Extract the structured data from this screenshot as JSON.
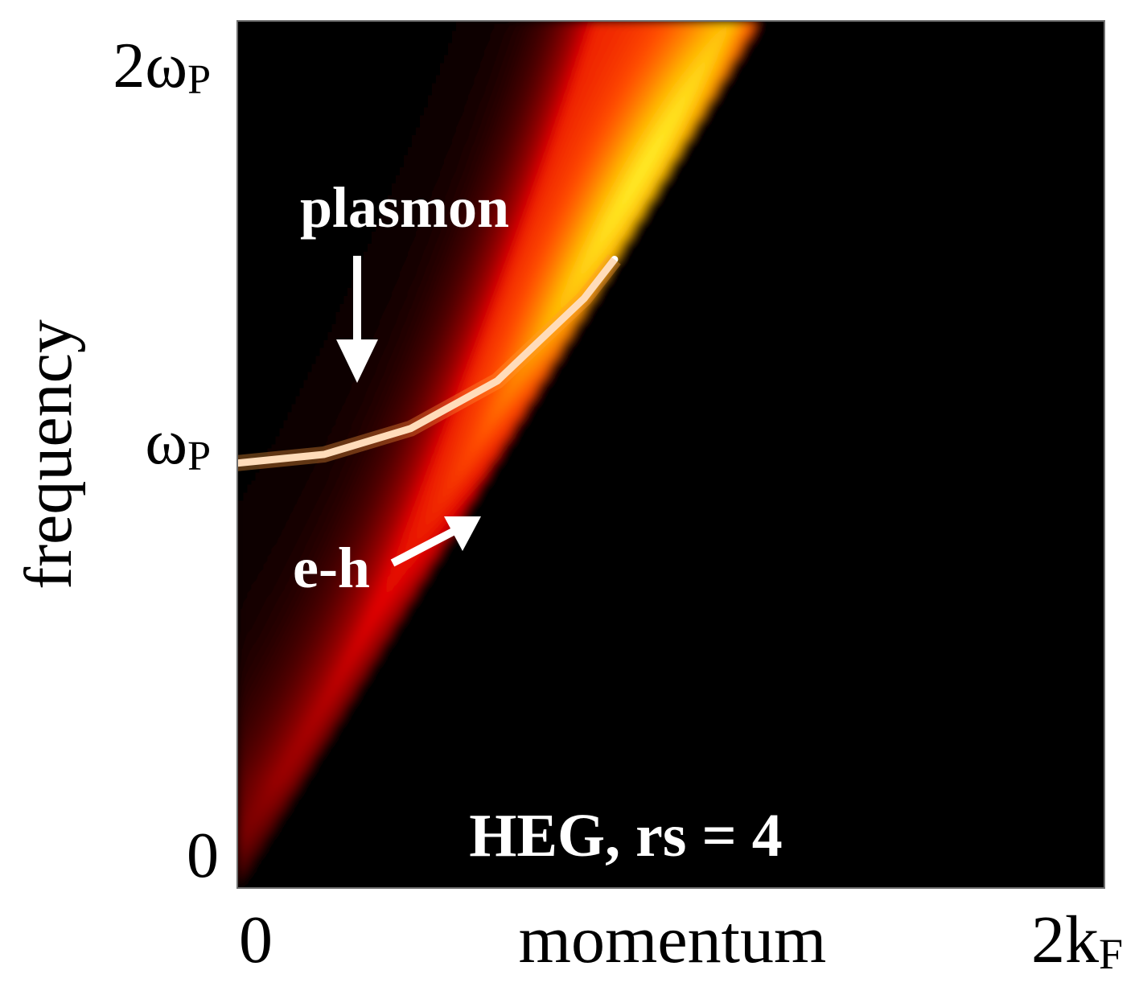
{
  "chart_data": {
    "type": "heatmap",
    "title": "",
    "xlabel": "momentum",
    "ylabel": "frequency",
    "x_ticks": [
      {
        "value": 0,
        "label": "0"
      },
      {
        "value": 2,
        "label": "2k",
        "sub": "F"
      }
    ],
    "y_ticks": [
      {
        "value": 0,
        "label": "0"
      },
      {
        "value": 1,
        "label": "ω",
        "sub": "P"
      },
      {
        "value": 2,
        "label": "2ω",
        "sub": "P"
      }
    ],
    "xlim": [
      0,
      2
    ],
    "ylim": [
      0,
      2
    ],
    "x_unit": "k_F",
    "y_unit": "ω_P",
    "grid": false,
    "colormap": [
      "#000000",
      "#7a0000",
      "#e00000",
      "#ff4a00",
      "#ffb400",
      "#ffff33",
      "#ffffff"
    ],
    "plasmon_dispersion": [
      {
        "x": 0.0,
        "y": 0.98
      },
      {
        "x": 0.2,
        "y": 1.0
      },
      {
        "x": 0.4,
        "y": 1.06
      },
      {
        "x": 0.6,
        "y": 1.17
      },
      {
        "x": 0.8,
        "y": 1.36
      },
      {
        "x": 0.87,
        "y": 1.45
      }
    ],
    "eh_continuum_lower_edge": [
      {
        "x": 0.0,
        "y": 0.0
      },
      {
        "x": 0.87,
        "y": 1.45
      }
    ],
    "annotations": [
      {
        "text": "plasmon",
        "arrow_to": {
          "x": 0.28,
          "y": 1.17
        }
      },
      {
        "text": "e-h",
        "arrow_to": {
          "x": 0.56,
          "y": 0.86
        }
      },
      {
        "text": "HEG, rs = 4"
      }
    ]
  }
}
